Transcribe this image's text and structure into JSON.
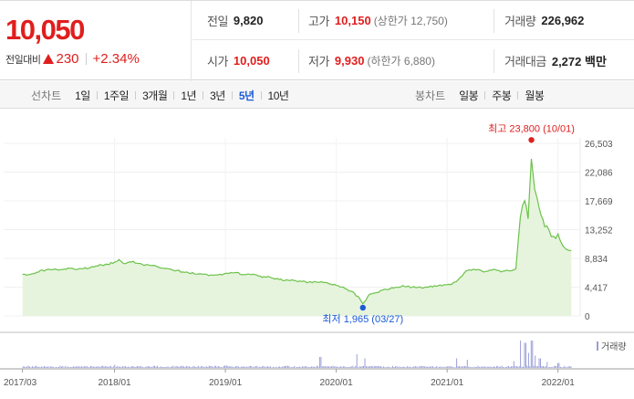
{
  "quote": {
    "price": "10,050",
    "change_label": "전일대비",
    "change_value": "230",
    "change_pct": "+2.34%",
    "prev_close": {
      "label": "전일",
      "value": "9,820"
    },
    "open": {
      "label": "시가",
      "value": "10,050"
    },
    "high": {
      "label": "고가",
      "value": "10,150",
      "note": "(상한가 12,750)"
    },
    "low": {
      "label": "저가",
      "value": "9,930",
      "note": "(하한가 6,880)"
    },
    "volume": {
      "label": "거래량",
      "value": "226,962"
    },
    "amount": {
      "label": "거래대금",
      "value": "2,272 백만"
    },
    "colors": {
      "up": "#e01e1e",
      "down": "#1a5ad8"
    }
  },
  "toolbar": {
    "line_title": "선차트",
    "periods": [
      "1일",
      "1주일",
      "3개월",
      "1년",
      "3년",
      "5년",
      "10년"
    ],
    "active_period": "5년",
    "candle_title": "봉차트",
    "candles": [
      "일봉",
      "주봉",
      "월봉"
    ]
  },
  "chart_data": {
    "type": "area",
    "x_ticks": [
      "2017/03",
      "2018/01",
      "2019/01",
      "2020/01",
      "2021/01",
      "2022/01"
    ],
    "y_ticks": [
      "26,503",
      "22,086",
      "17,669",
      "13,252",
      "8,834",
      "4,417",
      "0"
    ],
    "ylim": [
      0,
      26503
    ],
    "high_annotation": "최고 23,800 (10/01)",
    "low_annotation": "최저 1,965 (03/27)",
    "volume_legend": "거래량",
    "colors": {
      "line": "#6cc24a",
      "fill": "#e6f4dd",
      "high": "#e01e1e",
      "low": "#1a5ad8",
      "volume": "#9a9ed6"
    },
    "price_series": [
      [
        2017.17,
        6350
      ],
      [
        2017.25,
        6500
      ],
      [
        2017.33,
        6900
      ],
      [
        2017.42,
        7200
      ],
      [
        2017.5,
        7000
      ],
      [
        2017.58,
        7300
      ],
      [
        2017.67,
        7100
      ],
      [
        2017.75,
        7350
      ],
      [
        2017.83,
        7700
      ],
      [
        2017.92,
        7900
      ],
      [
        2018.0,
        8200
      ],
      [
        2018.04,
        8700
      ],
      [
        2018.08,
        8100
      ],
      [
        2018.17,
        8350
      ],
      [
        2018.25,
        7900
      ],
      [
        2018.33,
        7800
      ],
      [
        2018.42,
        7300
      ],
      [
        2018.5,
        7100
      ],
      [
        2018.58,
        6900
      ],
      [
        2018.67,
        6600
      ],
      [
        2018.75,
        6500
      ],
      [
        2018.83,
        6300
      ],
      [
        2018.92,
        6250
      ],
      [
        2019.0,
        6500
      ],
      [
        2019.08,
        6700
      ],
      [
        2019.17,
        6350
      ],
      [
        2019.25,
        6450
      ],
      [
        2019.33,
        6000
      ],
      [
        2019.42,
        5900
      ],
      [
        2019.5,
        5600
      ],
      [
        2019.58,
        5450
      ],
      [
        2019.67,
        5300
      ],
      [
        2019.75,
        5150
      ],
      [
        2019.83,
        5300
      ],
      [
        2019.92,
        5050
      ],
      [
        2020.0,
        4750
      ],
      [
        2020.08,
        4300
      ],
      [
        2020.15,
        3600
      ],
      [
        2020.21,
        2700
      ],
      [
        2020.24,
        1965
      ],
      [
        2020.3,
        3200
      ],
      [
        2020.4,
        3800
      ],
      [
        2020.5,
        4300
      ],
      [
        2020.6,
        4600
      ],
      [
        2020.7,
        4400
      ],
      [
        2020.8,
        4300
      ],
      [
        2020.92,
        4700
      ],
      [
        2021.0,
        4700
      ],
      [
        2021.08,
        5200
      ],
      [
        2021.17,
        6900
      ],
      [
        2021.25,
        7200
      ],
      [
        2021.33,
        6800
      ],
      [
        2021.42,
        7100
      ],
      [
        2021.5,
        6800
      ],
      [
        2021.58,
        7000
      ],
      [
        2021.62,
        7200
      ],
      [
        2021.66,
        15500
      ],
      [
        2021.7,
        17800
      ],
      [
        2021.73,
        15000
      ],
      [
        2021.76,
        23800
      ],
      [
        2021.79,
        19000
      ],
      [
        2021.83,
        16500
      ],
      [
        2021.88,
        14000
      ],
      [
        2021.92,
        13000
      ],
      [
        2021.96,
        12200
      ],
      [
        2022.0,
        12500
      ],
      [
        2022.04,
        10800
      ],
      [
        2022.08,
        10200
      ],
      [
        2022.12,
        10050
      ]
    ],
    "volume_spikes": [
      [
        2018.0,
        0.12
      ],
      [
        2019.0,
        0.09
      ],
      [
        2019.85,
        0.4
      ],
      [
        2020.18,
        0.5
      ],
      [
        2020.25,
        0.35
      ],
      [
        2021.08,
        0.35
      ],
      [
        2021.18,
        0.3
      ],
      [
        2021.6,
        0.25
      ],
      [
        2021.66,
        1.0
      ],
      [
        2021.7,
        0.92
      ],
      [
        2021.73,
        0.55
      ],
      [
        2021.76,
        1.0
      ],
      [
        2021.79,
        0.45
      ],
      [
        2021.83,
        0.35
      ],
      [
        2021.9,
        0.22
      ],
      [
        2022.0,
        0.18
      ]
    ]
  }
}
